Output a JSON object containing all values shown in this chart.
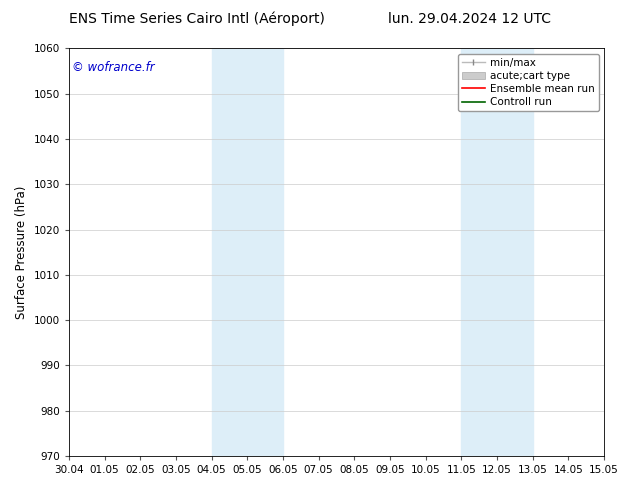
{
  "title_left": "ENS Time Series Cairo Intl (Aéroport)",
  "title_right": "lun. 29.04.2024 12 UTC",
  "ylabel": "Surface Pressure (hPa)",
  "ylim": [
    970,
    1060
  ],
  "yticks": [
    970,
    980,
    990,
    1000,
    1010,
    1020,
    1030,
    1040,
    1050,
    1060
  ],
  "xtick_labels": [
    "30.04",
    "01.05",
    "02.05",
    "03.05",
    "04.05",
    "05.05",
    "06.05",
    "07.05",
    "08.05",
    "09.05",
    "10.05",
    "11.05",
    "12.05",
    "13.05",
    "14.05",
    "15.05"
  ],
  "watermark": "© wofrance.fr",
  "watermark_color": "#0000cc",
  "bg_color": "#ffffff",
  "plot_bg_color": "#ffffff",
  "shaded_regions": [
    {
      "xstart": 4,
      "xend": 6,
      "color": "#ddeef8"
    },
    {
      "xstart": 11,
      "xend": 13,
      "color": "#ddeef8"
    }
  ],
  "grid_color": "#cccccc",
  "title_fontsize": 10,
  "tick_fontsize": 7.5,
  "ylabel_fontsize": 8.5,
  "legend_fontsize": 7.5
}
